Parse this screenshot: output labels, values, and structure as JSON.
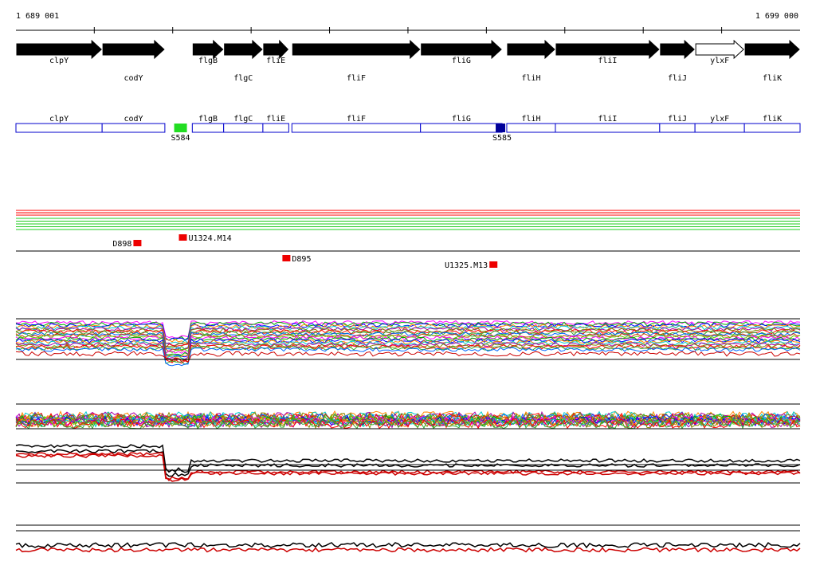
{
  "coordinates": {
    "start": "1 689 001",
    "end": "1 699 000"
  },
  "genes": [
    {
      "name": "clpY",
      "from": 1689001,
      "to": 1690100,
      "strand": "+",
      "filled": true
    },
    {
      "name": "codY",
      "from": 1690100,
      "to": 1690900,
      "strand": "+",
      "filled": true
    },
    {
      "name": "flgB",
      "from": 1691250,
      "to": 1691650,
      "strand": "+",
      "filled": true
    },
    {
      "name": "flgC",
      "from": 1691650,
      "to": 1692150,
      "strand": "+",
      "filled": true
    },
    {
      "name": "fliE",
      "from": 1692150,
      "to": 1692480,
      "strand": "+",
      "filled": true
    },
    {
      "name": "fliF",
      "from": 1692520,
      "to": 1694160,
      "strand": "+",
      "filled": true
    },
    {
      "name": "fliG",
      "from": 1694160,
      "to": 1695200,
      "strand": "+",
      "filled": true
    },
    {
      "name": "fliH",
      "from": 1695260,
      "to": 1695880,
      "strand": "+",
      "filled": true
    },
    {
      "name": "fliI",
      "from": 1695880,
      "to": 1697210,
      "strand": "+",
      "filled": true
    },
    {
      "name": "fliJ",
      "from": 1697210,
      "to": 1697660,
      "strand": "+",
      "filled": true
    },
    {
      "name": "ylxF",
      "from": 1697660,
      "to": 1698290,
      "strand": "+",
      "filled": false
    },
    {
      "name": "fliK",
      "from": 1698290,
      "to": 1699000,
      "strand": "+",
      "filled": true
    }
  ],
  "annotation_boxes": [
    "clpY",
    "codY",
    "flgB",
    "flgC",
    "fliE",
    "fliF",
    "fliG",
    "fliH",
    "fliI",
    "fliJ",
    "ylxF",
    "fliK"
  ],
  "segments": [
    {
      "name": "S584",
      "pos": 1691100,
      "color": "#22dd22"
    },
    {
      "name": "S585",
      "pos": 1695200,
      "color": "#000099"
    }
  ],
  "features": [
    {
      "name": "D898",
      "pos": 1690560
    },
    {
      "name": "U1324.M14",
      "pos": 1691140
    },
    {
      "name": "D895",
      "pos": 1692460
    },
    {
      "name": "U1325.M13",
      "pos": 1695100
    }
  ],
  "colors": {
    "forward": "#ff0000",
    "reverse": "#22cc22",
    "feature": "#ee0000",
    "box": "#0000cc"
  }
}
